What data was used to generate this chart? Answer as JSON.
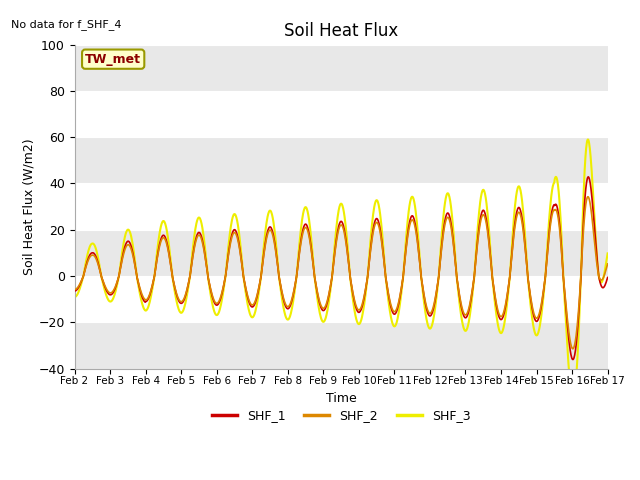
{
  "title": "Soil Heat Flux",
  "xlabel": "Time",
  "ylabel": "Soil Heat Flux (W/m2)",
  "no_data_text": "No data for f_SHF_4",
  "annotation_text": "TW_met",
  "ylim": [
    -40,
    100
  ],
  "yticks": [
    -40,
    -20,
    0,
    20,
    40,
    60,
    80,
    100
  ],
  "xtick_labels": [
    "Feb 2",
    "Feb 3",
    "Feb 4",
    "Feb 5",
    "Feb 6",
    "Feb 7",
    "Feb 8",
    "Feb 9",
    "Feb 10",
    "Feb 11",
    "Feb 12",
    "Feb 13",
    "Feb 14",
    "Feb 15",
    "Feb 16",
    "Feb 17"
  ],
  "n_days": 15,
  "colors": {
    "SHF_1": "#cc0000",
    "SHF_2": "#dd8800",
    "SHF_3": "#eeee00",
    "bg_white": "#ffffff",
    "bg_gray": "#e8e8e8",
    "annotation_bg": "#ffffcc",
    "annotation_border": "#999900",
    "grid_line": "#ffffff"
  },
  "legend_entries": [
    "SHF_1",
    "SHF_2",
    "SHF_3"
  ],
  "figsize": [
    6.4,
    4.8
  ],
  "dpi": 100
}
